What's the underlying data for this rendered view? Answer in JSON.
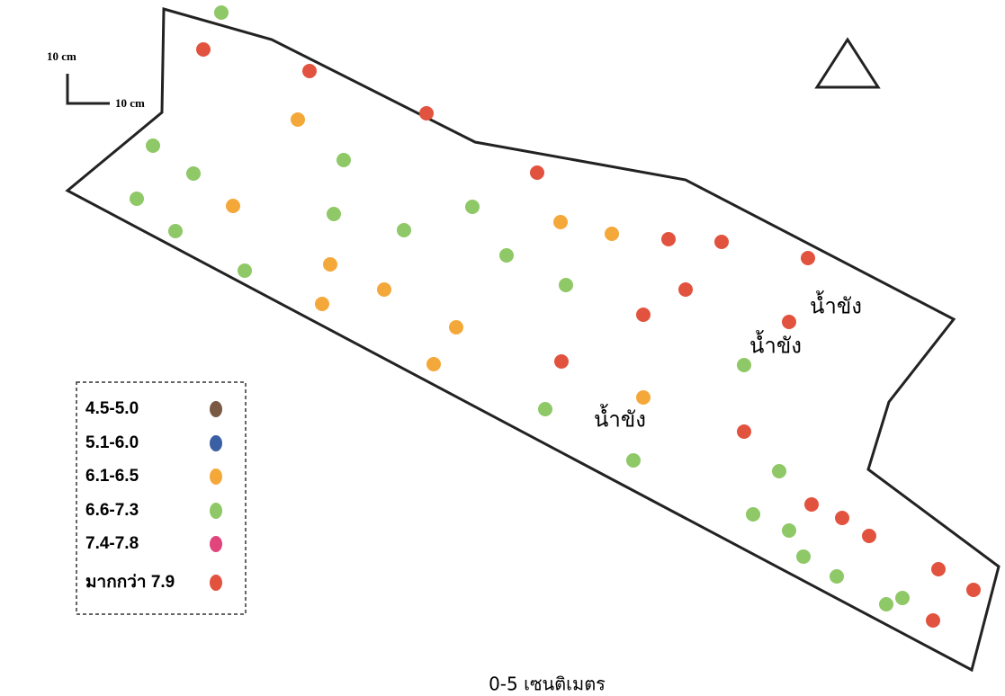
{
  "scale": {
    "vertical": "10 cm",
    "horizontal": "10 cm"
  },
  "water_labels": [
    "น้ำขัง",
    "น้ำขัง",
    "น้ำขัง"
  ],
  "legend": [
    {
      "label": "4.5-5.0",
      "color": "#7a5a44"
    },
    {
      "label": "5.1-6.0",
      "color": "#3b5fa3"
    },
    {
      "label": "6.1-6.5",
      "color": "#f5a83a"
    },
    {
      "label": "6.6-7.3",
      "color": "#8fc866"
    },
    {
      "label": "7.4-7.8",
      "color": "#e0457c"
    },
    {
      "label": "มากกว่า 7.9",
      "color": "#e2533f"
    }
  ],
  "caption": "0-5 เซนติเมตร"
}
